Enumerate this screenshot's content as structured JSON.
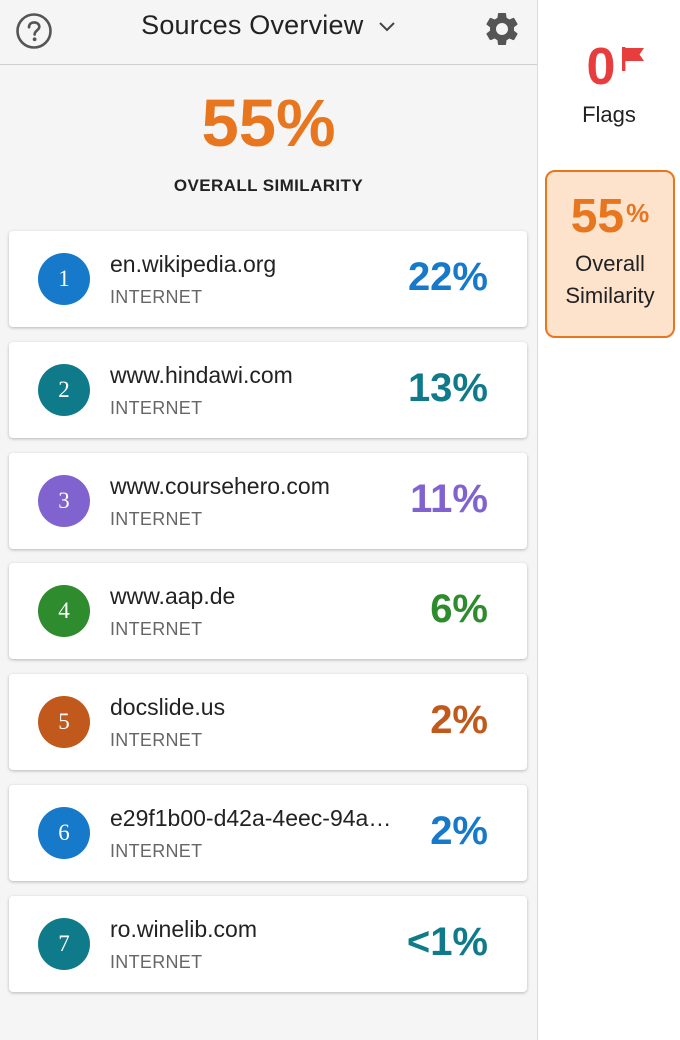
{
  "header": {
    "title": "Sources Overview",
    "help_icon": "help-circle-icon",
    "settings_icon": "gear-icon",
    "dropdown_icon": "chevron-down-icon"
  },
  "overall": {
    "percent": "55%",
    "label": "OVERALL SIMILARITY",
    "color": "#e8761f"
  },
  "sources": [
    {
      "rank": "1",
      "name": "en.wikipedia.org",
      "type": "INTERNET",
      "percent": "22%",
      "color": "#1679c9"
    },
    {
      "rank": "2",
      "name": "www.hindawi.com",
      "type": "INTERNET",
      "percent": "13%",
      "color": "#0f7b8a"
    },
    {
      "rank": "3",
      "name": "www.coursehero.com",
      "type": "INTERNET",
      "percent": "11%",
      "color": "#8063cf"
    },
    {
      "rank": "4",
      "name": "www.aap.de",
      "type": "INTERNET",
      "percent": "6%",
      "color": "#2e8b2e"
    },
    {
      "rank": "5",
      "name": "docslide.us",
      "type": "INTERNET",
      "percent": "2%",
      "color": "#c0591b"
    },
    {
      "rank": "6",
      "name": "e29f1b00-d42a-4eec-94a…",
      "type": "INTERNET",
      "percent": "2%",
      "color": "#1679c9"
    },
    {
      "rank": "7",
      "name": "ro.winelib.com",
      "type": "INTERNET",
      "percent": "<1%",
      "color": "#0f7b8a"
    }
  ],
  "sidebar": {
    "flags_count": "0",
    "flags_label": "Flags",
    "flag_icon": "flag-icon",
    "similarity_percent": "55",
    "similarity_percent_sign": "%",
    "similarity_label_line1": "Overall",
    "similarity_label_line2": "Similarity"
  }
}
